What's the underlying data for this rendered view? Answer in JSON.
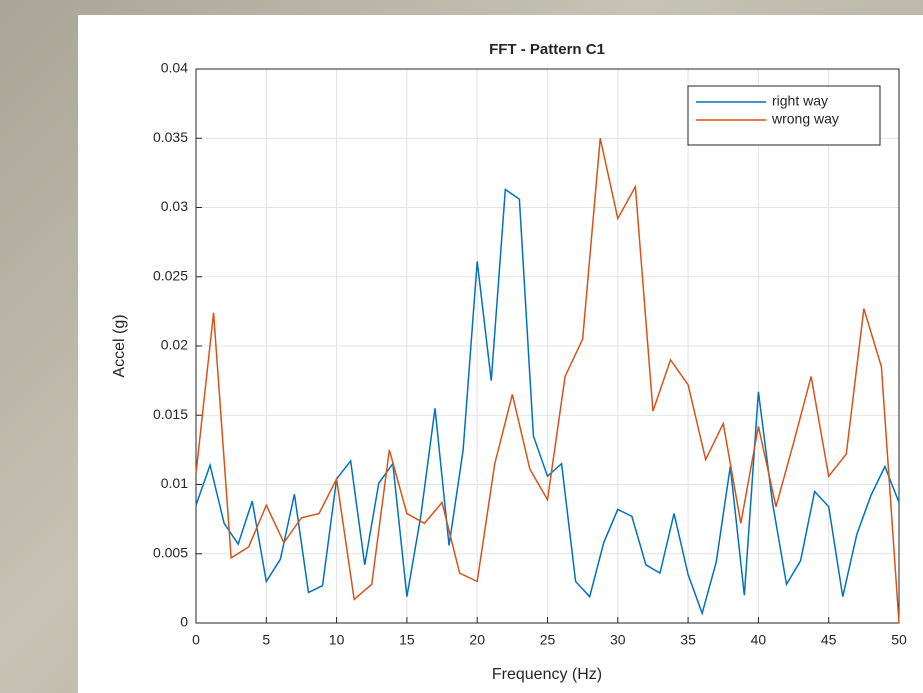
{
  "chart_data": {
    "type": "line",
    "title": "FFT - Pattern C1",
    "x_label": "Frequency (Hz)",
    "y_label": "Accel (g)",
    "xlim": [
      0,
      50
    ],
    "xticks": [
      0,
      5,
      10,
      15,
      20,
      25,
      30,
      35,
      40,
      45,
      50
    ],
    "ylim": [
      0,
      0.04
    ],
    "yticks": [
      0,
      0.005,
      0.01,
      0.015,
      0.02,
      0.025,
      0.03,
      0.035,
      0.04
    ],
    "grid": true,
    "legend": "top-right",
    "series": [
      {
        "name": "right way",
        "color": "#0072bd",
        "x": [
          0,
          1,
          2,
          3,
          4,
          5,
          6,
          7,
          8,
          9,
          10,
          11,
          12,
          13,
          14,
          15,
          16,
          17,
          18,
          19,
          20,
          21,
          22,
          23,
          24,
          25,
          26,
          27,
          28,
          29,
          30,
          31,
          32,
          33,
          34,
          35,
          36,
          37,
          38,
          39,
          40,
          41,
          42,
          43,
          44,
          45,
          46,
          47,
          48,
          49,
          50
        ],
        "values": [
          0.0085,
          0.0114,
          0.0072,
          0.0057,
          0.0088,
          0.003,
          0.0046,
          0.0093,
          0.0022,
          0.0027,
          0.0104,
          0.0117,
          0.0042,
          0.0101,
          0.0115,
          0.0019,
          0.0078,
          0.0155,
          0.0056,
          0.0125,
          0.0261,
          0.0175,
          0.0313,
          0.0306,
          0.0135,
          0.0106,
          0.0115,
          0.003,
          0.0019,
          0.0058,
          0.0082,
          0.0077,
          0.0042,
          0.0036,
          0.0079,
          0.0035,
          0.0007,
          0.0044,
          0.0113,
          0.002,
          0.0167,
          0.0087,
          0.0028,
          0.0045,
          0.0095,
          0.0084,
          0.0019,
          0.0064,
          0.0092,
          0.0113,
          0.0087
        ]
      },
      {
        "name": "wrong way",
        "color": "#d95319",
        "x": [
          0,
          1.25,
          2.5,
          3.75,
          5,
          6.25,
          7.5,
          8.75,
          10,
          11.25,
          12.5,
          13.75,
          15,
          16.25,
          17.5,
          18.75,
          20,
          21.25,
          22.5,
          23.75,
          25,
          26.25,
          27.5,
          28.75,
          30,
          31.25,
          32.5,
          33.75,
          35,
          36.25,
          37.5,
          38.75,
          40,
          41.25,
          42.5,
          43.75,
          45,
          46.25,
          47.5,
          48.75,
          50
        ],
        "values": [
          0.0108,
          0.0224,
          0.0047,
          0.0055,
          0.0085,
          0.0058,
          0.0076,
          0.0079,
          0.0104,
          0.0017,
          0.0028,
          0.0125,
          0.0079,
          0.0072,
          0.0087,
          0.0036,
          0.003,
          0.0115,
          0.0165,
          0.0111,
          0.0089,
          0.0178,
          0.0205,
          0.035,
          0.0292,
          0.0315,
          0.0153,
          0.019,
          0.0172,
          0.0118,
          0.0144,
          0.0072,
          0.0142,
          0.0084,
          0.013,
          0.0178,
          0.0106,
          0.0122,
          0.0227,
          0.0185,
          0.0
        ]
      }
    ]
  }
}
